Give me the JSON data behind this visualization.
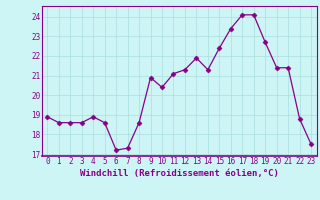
{
  "x": [
    0,
    1,
    2,
    3,
    4,
    5,
    6,
    7,
    8,
    9,
    10,
    11,
    12,
    13,
    14,
    15,
    16,
    17,
    18,
    19,
    20,
    21,
    22,
    23
  ],
  "y": [
    18.9,
    18.6,
    18.6,
    18.6,
    18.9,
    18.6,
    17.2,
    17.3,
    18.6,
    20.9,
    20.4,
    21.1,
    21.3,
    21.9,
    21.3,
    22.4,
    23.4,
    24.1,
    24.1,
    22.7,
    21.4,
    21.4,
    18.8,
    17.5
  ],
  "line_color": "#880088",
  "marker": "D",
  "marker_size": 2.5,
  "bg_color": "#cef5f5",
  "grid_color": "#aadddd",
  "xlabel": "Windchill (Refroidissement éolien,°C)",
  "xlim": [
    -0.5,
    23.5
  ],
  "ylim": [
    16.9,
    24.55
  ],
  "yticks": [
    17,
    18,
    19,
    20,
    21,
    22,
    23,
    24
  ],
  "xticks": [
    0,
    1,
    2,
    3,
    4,
    5,
    6,
    7,
    8,
    9,
    10,
    11,
    12,
    13,
    14,
    15,
    16,
    17,
    18,
    19,
    20,
    21,
    22,
    23
  ],
  "spine_color": "#880088",
  "tick_label_fontsize": 5.5,
  "xlabel_fontsize": 6.5
}
